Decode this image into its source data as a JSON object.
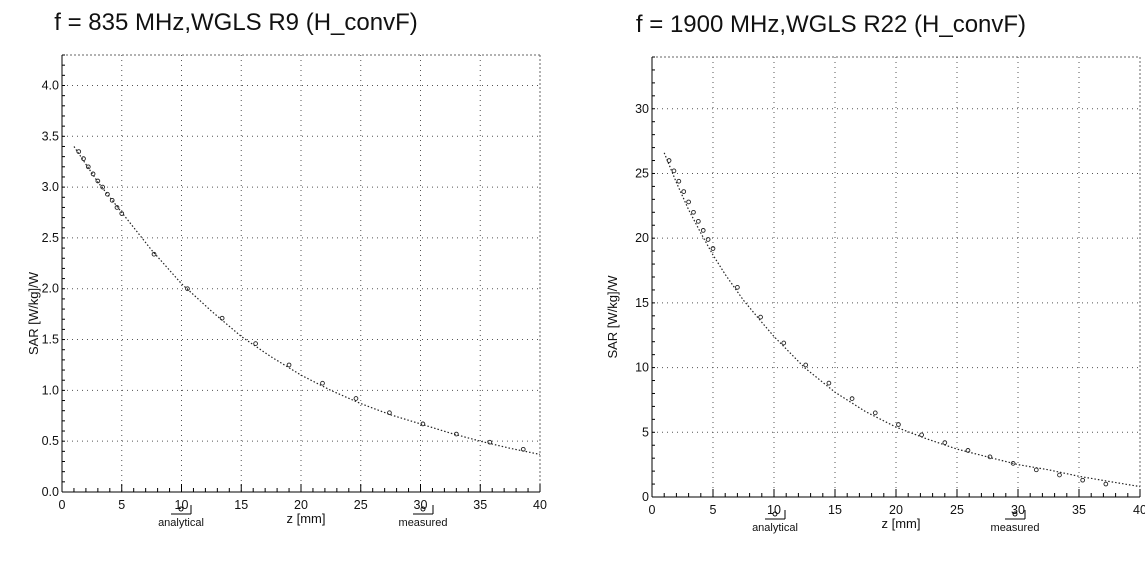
{
  "chart_data": [
    {
      "type": "line",
      "title": "f = 835 MHz,WGLS R9 (H_convF)",
      "xlabel": "z [mm]",
      "ylabel": "SAR [W/kg]/W",
      "xlim": [
        0,
        40
      ],
      "ylim": [
        0,
        4.3
      ],
      "xticks": [
        "0",
        "5",
        "10",
        "15",
        "20",
        "25",
        "30",
        "35",
        "40"
      ],
      "yticks": [
        "0.0",
        "0.5",
        "1.0",
        "1.5",
        "2.0",
        "2.5",
        "3.0",
        "3.5",
        "4.0"
      ],
      "grid": true,
      "legend_position": "bottom",
      "series": [
        {
          "name": "analytical",
          "style": "dotted-line",
          "x": [
            1,
            3,
            5,
            7.5,
            10,
            12.5,
            15,
            17.5,
            20,
            22.5,
            25,
            27.5,
            30,
            32.5,
            35,
            37.5,
            40
          ],
          "y": [
            3.4,
            3.05,
            2.75,
            2.38,
            2.05,
            1.78,
            1.53,
            1.33,
            1.15,
            1.0,
            0.87,
            0.76,
            0.67,
            0.58,
            0.5,
            0.43,
            0.37
          ]
        },
        {
          "name": "measured",
          "style": "markers",
          "x": [
            1.4,
            1.8,
            2.2,
            2.6,
            3.0,
            3.4,
            3.8,
            4.2,
            4.6,
            5.0,
            7.7,
            10.5,
            13.4,
            16.2,
            19.0,
            21.8,
            24.6,
            27.4,
            30.2,
            33.0,
            35.8,
            38.6
          ],
          "y": [
            3.35,
            3.28,
            3.2,
            3.13,
            3.06,
            3.0,
            2.93,
            2.87,
            2.8,
            2.74,
            2.34,
            2.0,
            1.71,
            1.46,
            1.25,
            1.07,
            0.92,
            0.78,
            0.67,
            0.57,
            0.49,
            0.42
          ]
        }
      ]
    },
    {
      "type": "line",
      "title": "f = 1900 MHz,WGLS R22 (H_convF)",
      "xlabel": "z [mm]",
      "ylabel": "SAR [W/kg]/W",
      "xlim": [
        0,
        40
      ],
      "ylim": [
        0,
        34
      ],
      "xticks": [
        "0",
        "5",
        "10",
        "15",
        "20",
        "25",
        "30",
        "35",
        "40"
      ],
      "yticks": [
        "0",
        "5",
        "10",
        "15",
        "20",
        "25",
        "30"
      ],
      "grid": true,
      "legend_position": "bottom",
      "series": [
        {
          "name": "analytical",
          "style": "dotted-line",
          "x": [
            1,
            2,
            3,
            4,
            5,
            6,
            7.5,
            9,
            10,
            12.5,
            15,
            17.5,
            20,
            22.5,
            25,
            27.5,
            30,
            32.5,
            35,
            37.5,
            40
          ],
          "y": [
            26.6,
            24.3,
            22.2,
            20.4,
            18.7,
            17.2,
            15.2,
            13.5,
            12.4,
            10.0,
            8.1,
            6.6,
            5.4,
            4.5,
            3.7,
            3.1,
            2.5,
            2.1,
            1.6,
            1.2,
            0.8
          ]
        },
        {
          "name": "measured",
          "style": "markers",
          "x": [
            1.4,
            1.8,
            2.2,
            2.6,
            3.0,
            3.4,
            3.8,
            4.2,
            4.6,
            5.0,
            7.0,
            8.9,
            10.8,
            12.6,
            14.5,
            16.4,
            18.3,
            20.2,
            22.1,
            24.0,
            25.9,
            27.7,
            29.6,
            31.5,
            33.4,
            35.3,
            37.2
          ],
          "y": [
            26.0,
            25.2,
            24.4,
            23.6,
            22.8,
            22.0,
            21.3,
            20.6,
            19.9,
            19.2,
            16.2,
            13.9,
            11.9,
            10.2,
            8.8,
            7.6,
            6.5,
            5.6,
            4.8,
            4.2,
            3.6,
            3.1,
            2.6,
            2.1,
            1.7,
            1.3,
            1.0
          ]
        }
      ]
    }
  ]
}
